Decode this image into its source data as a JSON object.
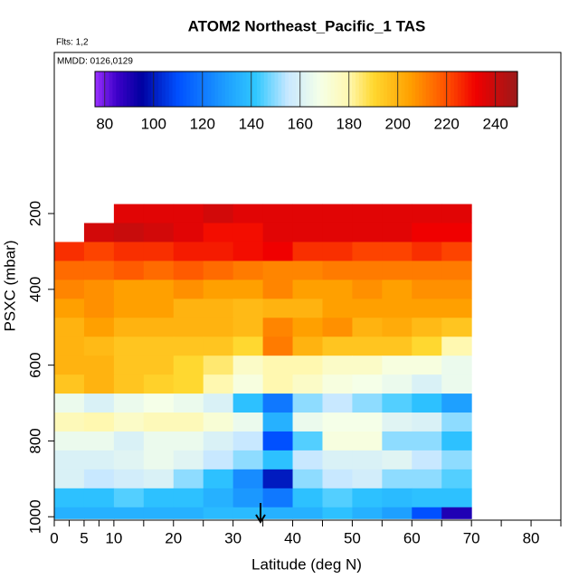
{
  "chart_data": {
    "type": "heatmap",
    "title": "ATOM2 Northeast_Pacific_1 TAS",
    "annotations": [
      "Flts: 1,2",
      "MMDD: 0126,0129"
    ],
    "x_label": "Latitude (deg N)",
    "y_label": "PSXC (mbar)",
    "xlim": [
      0,
      85
    ],
    "ylim": [
      1009,
      -225
    ],
    "xticks": [
      0,
      5,
      10,
      20,
      30,
      40,
      50,
      60,
      70,
      80
    ],
    "xminorticks": [
      2.5,
      7.5,
      15,
      25,
      35,
      45,
      55,
      65,
      75,
      85
    ],
    "yticks": [
      200,
      400,
      600,
      800,
      1000
    ],
    "x_edges": [
      0,
      5,
      10,
      15,
      20,
      25,
      30,
      35,
      40,
      45,
      50,
      55,
      60,
      65,
      70
    ],
    "y_edges": [
      175,
      225,
      275,
      325,
      375,
      425,
      475,
      525,
      575,
      625,
      675,
      725,
      775,
      825,
      875,
      925,
      975,
      1005
    ],
    "z": [
      [
        null,
        null,
        235,
        235,
        235,
        238,
        235,
        235,
        235,
        235,
        235,
        235,
        235,
        235
      ],
      [
        null,
        238,
        240,
        238,
        235,
        230,
        230,
        235,
        235,
        235,
        235,
        235,
        232,
        232
      ],
      [
        225,
        222,
        225,
        225,
        228,
        228,
        230,
        232,
        225,
        225,
        222,
        222,
        225,
        222
      ],
      [
        215,
        215,
        218,
        215,
        218,
        215,
        212,
        210,
        210,
        212,
        212,
        212,
        212,
        212
      ],
      [
        210,
        208,
        205,
        205,
        208,
        205,
        205,
        210,
        205,
        205,
        208,
        205,
        208,
        208
      ],
      [
        205,
        208,
        205,
        205,
        200,
        200,
        198,
        200,
        200,
        205,
        205,
        205,
        205,
        205
      ],
      [
        200,
        205,
        200,
        200,
        200,
        200,
        198,
        210,
        205,
        208,
        200,
        202,
        198,
        195
      ],
      [
        200,
        198,
        195,
        195,
        195,
        195,
        190,
        212,
        200,
        195,
        195,
        195,
        190,
        180
      ],
      [
        200,
        200,
        195,
        195,
        190,
        185,
        175,
        180,
        180,
        175,
        175,
        170,
        170,
        165
      ],
      [
        195,
        200,
        195,
        192,
        190,
        180,
        170,
        180,
        175,
        170,
        168,
        165,
        160,
        165
      ],
      [
        165,
        160,
        165,
        168,
        165,
        160,
        140,
        120,
        150,
        155,
        150,
        145,
        140,
        130
      ],
      [
        178,
        180,
        175,
        178,
        178,
        172,
        165,
        135,
        165,
        168,
        168,
        162,
        160,
        150
      ],
      [
        165,
        165,
        160,
        165,
        165,
        160,
        155,
        110,
        145,
        170,
        170,
        150,
        150,
        140
      ],
      [
        160,
        160,
        162,
        165,
        162,
        155,
        150,
        140,
        155,
        160,
        160,
        162,
        155,
        150
      ],
      [
        160,
        155,
        158,
        160,
        150,
        140,
        125,
        100,
        150,
        155,
        158,
        150,
        150,
        145
      ],
      [
        140,
        140,
        145,
        140,
        140,
        135,
        128,
        120,
        140,
        145,
        140,
        138,
        140,
        140
      ],
      [
        135,
        135,
        135,
        135,
        135,
        138,
        138,
        135,
        135,
        140,
        135,
        130,
        110,
        90
      ]
    ],
    "colorbar_lim": [
      76,
      249
    ],
    "colorbar_ticks": [
      80,
      100,
      120,
      140,
      160,
      180,
      200,
      220,
      240
    ],
    "colorscale": [
      {
        "value": 76,
        "color": "#9b30ff"
      },
      {
        "value": 85,
        "color": "#3d00c8"
      },
      {
        "value": 95,
        "color": "#0000a0"
      },
      {
        "value": 110,
        "color": "#0050ff"
      },
      {
        "value": 130,
        "color": "#1ea0ff"
      },
      {
        "value": 142,
        "color": "#30c8ff"
      },
      {
        "value": 155,
        "color": "#c8e8ff"
      },
      {
        "value": 168,
        "color": "#f5ffe8"
      },
      {
        "value": 180,
        "color": "#fff8b0"
      },
      {
        "value": 190,
        "color": "#ffd830"
      },
      {
        "value": 205,
        "color": "#ffa000"
      },
      {
        "value": 220,
        "color": "#ff5000"
      },
      {
        "value": 232,
        "color": "#f00000"
      },
      {
        "value": 249,
        "color": "#9b1a1a"
      }
    ]
  }
}
